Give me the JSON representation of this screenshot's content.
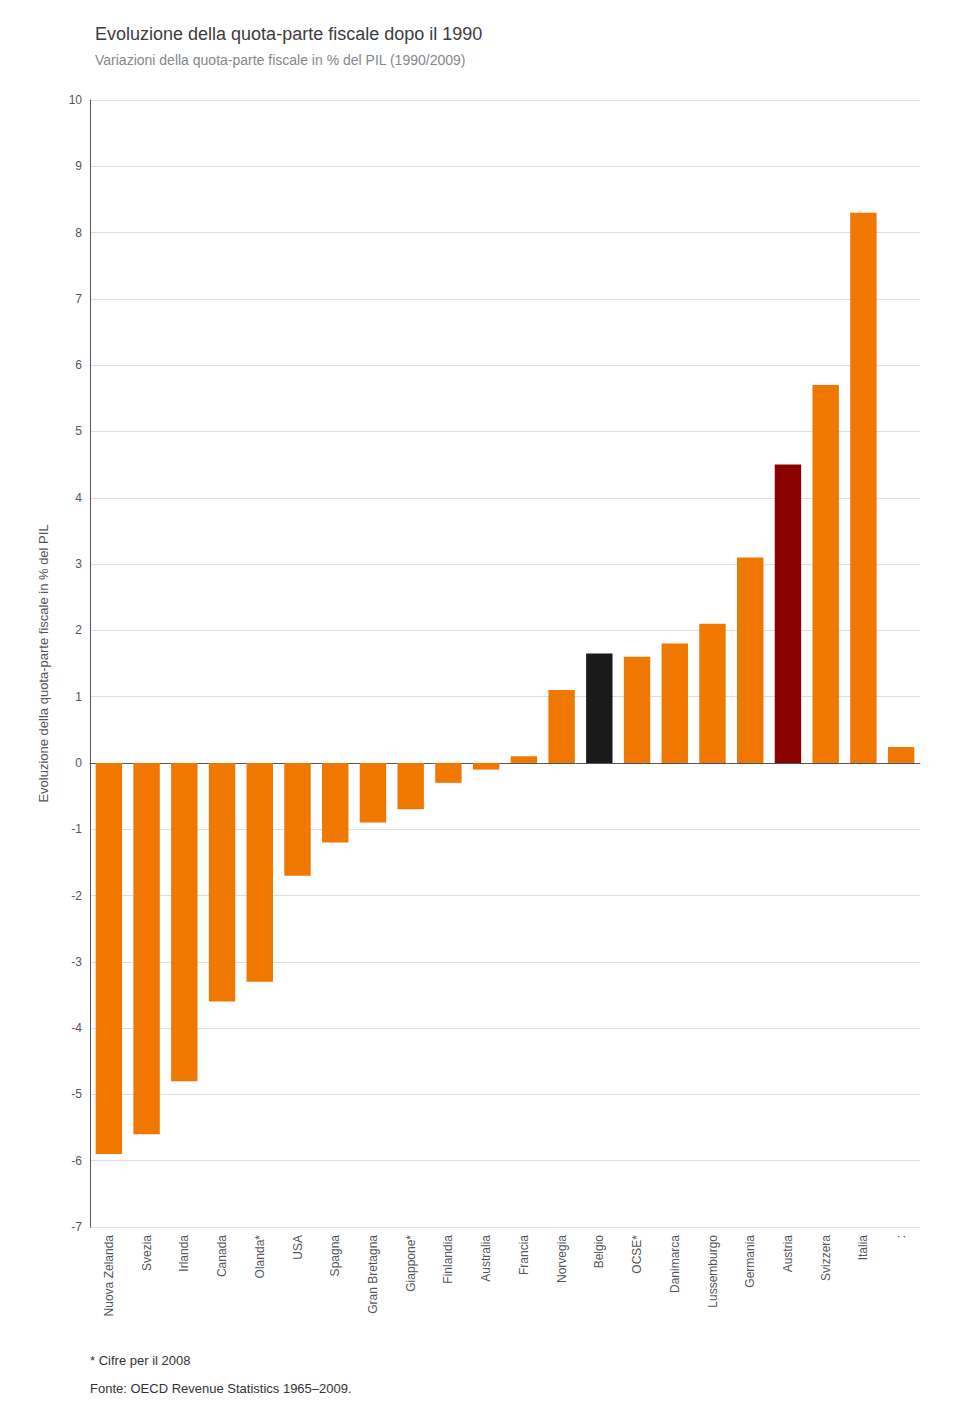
{
  "chart_data": {
    "type": "bar",
    "title": "Evoluzione della quota-parte fiscale dopo il 1990",
    "subtitle": "Variazioni della quota-parte fiscale in % del PIL (1990/2009)",
    "ylabel": "Evoluzione della quota-parte fiscale in % del PIL",
    "categories": [
      "Nuova Zelanda",
      "Svezia",
      "Irlanda",
      "Canada",
      "Olanda*",
      "USA",
      "Spagna",
      "Gran Bretagna",
      "Giappone*",
      "Finlandia",
      "Australia",
      "Francia",
      "Norvegia",
      "Belgio",
      "OCSE*",
      "Danimarca",
      "Lussemburgo",
      "Germania",
      "Austria",
      "Svizzera",
      "Italia",
      ":"
    ],
    "values": [
      -5.9,
      -5.6,
      -4.8,
      -3.6,
      -3.3,
      -1.7,
      -1.2,
      -0.9,
      -0.7,
      -0.3,
      -0.1,
      0.1,
      1.1,
      1.65,
      1.6,
      1.8,
      2.1,
      3.1,
      4.5,
      5.7,
      8.3,
      0.24
    ],
    "colors": [
      "#F07800",
      "#F07800",
      "#F07800",
      "#F07800",
      "#F07800",
      "#F07800",
      "#F07800",
      "#F07800",
      "#F07800",
      "#F07800",
      "#F07800",
      "#F07800",
      "#F07800",
      "#1A1A1A",
      "#F07800",
      "#F07800",
      "#F07800",
      "#F07800",
      "#8B0000",
      "#F07800",
      "#F07800",
      "#F07800"
    ],
    "ylim": [
      -7,
      10
    ],
    "yticks": [
      -7,
      -6,
      -5,
      -4,
      -3,
      -2,
      -1,
      0,
      1,
      2,
      3,
      4,
      5,
      6,
      7,
      8,
      9,
      10
    ],
    "grid": true,
    "annotations": [
      "* Cifre per il 2008",
      "Fonte: OECD Revenue Statistics 1965–2009."
    ]
  }
}
